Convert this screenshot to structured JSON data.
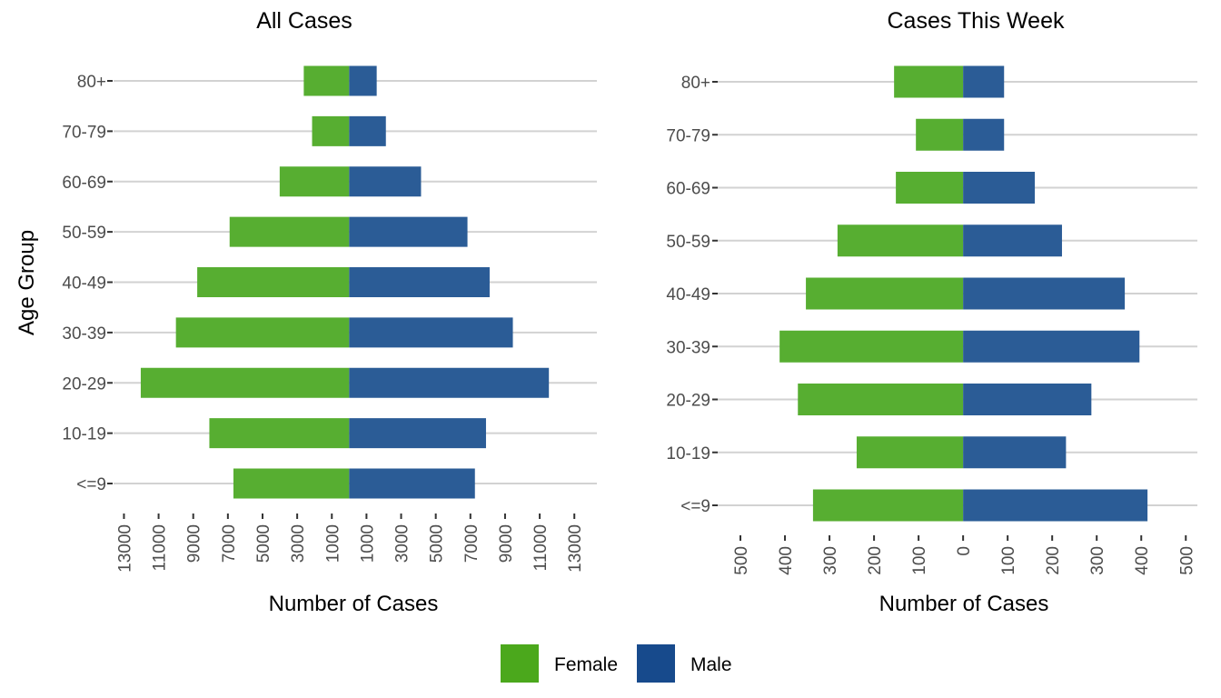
{
  "chart_data": [
    {
      "type": "bar",
      "orientation": "horizontal",
      "layout": "population-pyramid",
      "title": "All Cases",
      "xlabel": "Number of Cases",
      "ylabel": "Age Group",
      "categories": [
        "80+",
        "70-79",
        "60-69",
        "50-59",
        "40-49",
        "30-39",
        "20-29",
        "10-19",
        "<=9"
      ],
      "series": [
        {
          "name": "Female",
          "direction": "left",
          "values": [
            2620,
            2140,
            4010,
            6900,
            8770,
            10000,
            12030,
            8070,
            6680
          ]
        },
        {
          "name": "Male",
          "direction": "right",
          "values": [
            1590,
            2120,
            4150,
            6830,
            8110,
            9450,
            11530,
            7900,
            7260
          ]
        }
      ],
      "xlim": [
        -13600,
        14300
      ],
      "xticks": [
        -13000,
        -11000,
        -9000,
        -7000,
        -5000,
        -3000,
        -1000,
        1000,
        3000,
        5000,
        7000,
        9000,
        11000,
        13000
      ],
      "xtick_labels": [
        "13000",
        "11000",
        "9000",
        "7000",
        "5000",
        "3000",
        "1000",
        "1000",
        "3000",
        "5000",
        "7000",
        "9000",
        "11000",
        "13000"
      ],
      "grid": "horizontal-major"
    },
    {
      "type": "bar",
      "orientation": "horizontal",
      "layout": "population-pyramid",
      "title": "Cases This Week",
      "xlabel": "Number of Cases",
      "ylabel": "",
      "categories": [
        "80+",
        "70-79",
        "60-69",
        "50-59",
        "40-49",
        "30-39",
        "20-29",
        "10-19",
        "<=9"
      ],
      "series": [
        {
          "name": "Female",
          "direction": "left",
          "values": [
            155,
            106,
            151,
            282,
            353,
            412,
            371,
            239,
            337
          ]
        },
        {
          "name": "Male",
          "direction": "right",
          "values": [
            92,
            92,
            161,
            222,
            363,
            396,
            288,
            231,
            414
          ]
        }
      ],
      "xlim": [
        -551,
        526
      ],
      "xticks": [
        -500,
        -400,
        -300,
        -200,
        -100,
        0,
        100,
        200,
        300,
        400,
        500
      ],
      "xtick_labels": [
        "500",
        "400",
        "300",
        "200",
        "100",
        "0",
        "100",
        "200",
        "300",
        "400",
        "500"
      ],
      "grid": "horizontal-major"
    }
  ],
  "legend": {
    "position": "bottom",
    "items": [
      {
        "label": "Female",
        "color": "#4ba81c"
      },
      {
        "label": "Male",
        "color": "#174a8c"
      }
    ]
  },
  "colors": {
    "female_bar": "#57ae31",
    "male_bar": "#2b5c96"
  }
}
